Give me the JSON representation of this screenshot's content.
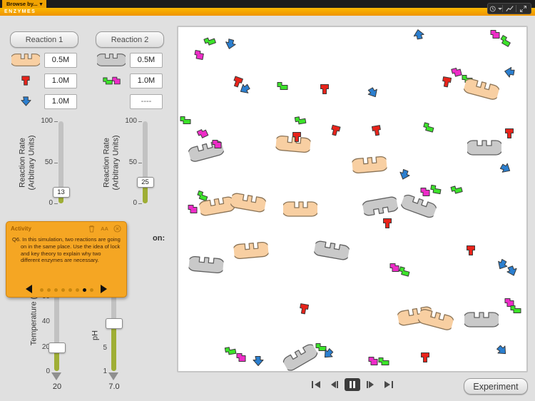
{
  "colors": {
    "accent": "#f5a71f",
    "enzyme1": "#f8cfa2",
    "enzyme2": "#c9c9c9",
    "substrate_red": "#e8231a",
    "substrate_blue": "#2b7fd0",
    "substrate_green": "#3ce32a",
    "substrate_magenta": "#ee2cc8",
    "slider_fill": "#9fae35"
  },
  "top": {
    "browse_by": "Browse by...",
    "title": "ENZYMES"
  },
  "icons": {
    "chevron_down": "▾"
  },
  "reaction1": {
    "button_label": "Reaction 1",
    "rows": [
      {
        "icon": "enzyme1-icon",
        "value": "0.5M"
      },
      {
        "icon": "substrate-red-icon",
        "value": "1.0M"
      },
      {
        "icon": "substrate-blue-icon",
        "value": "1.0M"
      }
    ],
    "rate": {
      "label_lines": [
        "Reaction Rate",
        "(Arbitrary Units)"
      ],
      "scale": [
        "100",
        "50",
        "0"
      ],
      "value": "13",
      "percent": 13
    }
  },
  "reaction2": {
    "button_label": "Reaction 2",
    "rows": [
      {
        "icon": "enzyme2-icon",
        "value": "0.5M"
      },
      {
        "icon": "substrate-green-magenta-icon",
        "value": "1.0M"
      },
      {
        "icon": "none",
        "value": "----"
      }
    ],
    "rate": {
      "label_lines": [
        "Reaction Rate",
        "(Arbitrary Units)"
      ],
      "scale": [
        "100",
        "50",
        "0"
      ],
      "value": "25",
      "percent": 25
    }
  },
  "activity": {
    "title": "Activity",
    "font_icon": "AA",
    "question": "Q6. In this simulation, two reactions are going on in the same place. Use the idea of lock and key theory to explain why two different enzymes are necessary.",
    "dots": 8,
    "active_dot": 6
  },
  "environment": {
    "heading_visible": "on:",
    "temperature": {
      "label": "Temperature (",
      "ticks": [
        "60",
        "40",
        "20",
        "0"
      ],
      "percent": 20,
      "pointer_value": "20"
    },
    "ph": {
      "label": "pH",
      "ticks": [
        "5",
        "1"
      ],
      "percent": 42,
      "pointer_value": "7.0"
    }
  },
  "experiment_label": "Experiment",
  "molecules": [
    [
      "g",
      9,
      4,
      -20
    ],
    [
      "m",
      6,
      8,
      10
    ],
    [
      "b",
      15,
      5,
      15
    ],
    [
      "b",
      69,
      2,
      170
    ],
    [
      "m",
      91,
      2,
      0
    ],
    [
      "g",
      94,
      4,
      30
    ],
    [
      "r",
      77,
      16,
      10
    ],
    [
      "m",
      80,
      13,
      -15
    ],
    [
      "g",
      83,
      15,
      0
    ],
    [
      "e1",
      87,
      18,
      15
    ],
    [
      "b",
      95,
      13,
      100
    ],
    [
      "b",
      56,
      19,
      -30
    ],
    [
      "r",
      42,
      18,
      0
    ],
    [
      "r",
      17,
      16,
      20
    ],
    [
      "b",
      19,
      18,
      60
    ],
    [
      "g",
      30,
      17,
      0
    ],
    [
      "g",
      35,
      27,
      -10
    ],
    [
      "r",
      45,
      30,
      15
    ],
    [
      "g",
      2,
      27,
      0
    ],
    [
      "m",
      7,
      31,
      -25
    ],
    [
      "e2",
      8,
      36,
      -15
    ],
    [
      "m",
      11,
      34,
      0
    ],
    [
      "e1",
      33,
      34,
      5
    ],
    [
      "r",
      34,
      32,
      0
    ],
    [
      "r",
      57,
      30,
      -10
    ],
    [
      "g",
      72,
      29,
      15
    ],
    [
      "e2",
      88,
      35,
      0
    ],
    [
      "r",
      95,
      31,
      0
    ],
    [
      "e1",
      55,
      40,
      -5
    ],
    [
      "b",
      65,
      43,
      20
    ],
    [
      "m",
      71,
      48,
      0
    ],
    [
      "g",
      74,
      47,
      10
    ],
    [
      "e2",
      69,
      52,
      20
    ],
    [
      "g",
      80,
      47,
      -15
    ],
    [
      "b",
      94,
      41,
      -60
    ],
    [
      "g",
      7,
      49,
      20
    ],
    [
      "m",
      4,
      53,
      0
    ],
    [
      "e1",
      11,
      52,
      -10
    ],
    [
      "e1",
      20,
      51,
      10
    ],
    [
      "e1",
      35,
      53,
      0
    ],
    [
      "e2",
      58,
      52,
      170
    ],
    [
      "r",
      60,
      57,
      0
    ],
    [
      "e1",
      21,
      65,
      -5
    ],
    [
      "e2",
      44,
      65,
      10
    ],
    [
      "r",
      84,
      65,
      0
    ],
    [
      "e2",
      8,
      69,
      5
    ],
    [
      "m",
      62,
      70,
      0
    ],
    [
      "g",
      65,
      71,
      15
    ],
    [
      "b",
      93,
      69,
      30
    ],
    [
      "b",
      96,
      71,
      -20
    ],
    [
      "r",
      36,
      82,
      10
    ],
    [
      "e1",
      68,
      84,
      -10
    ],
    [
      "e1",
      74,
      85,
      15
    ],
    [
      "e2",
      87,
      85,
      0
    ],
    [
      "m",
      95,
      80,
      0
    ],
    [
      "g",
      97,
      82,
      0
    ],
    [
      "g",
      15,
      94,
      -10
    ],
    [
      "m",
      18,
      96,
      0
    ],
    [
      "g",
      41,
      93,
      0
    ],
    [
      "b",
      43,
      95,
      45
    ],
    [
      "e2",
      35,
      96,
      -30
    ],
    [
      "m",
      56,
      97,
      0
    ],
    [
      "g",
      59,
      97,
      0
    ],
    [
      "b",
      23,
      97,
      0
    ],
    [
      "r",
      71,
      96,
      0
    ],
    [
      "b",
      93,
      94,
      -45
    ]
  ]
}
